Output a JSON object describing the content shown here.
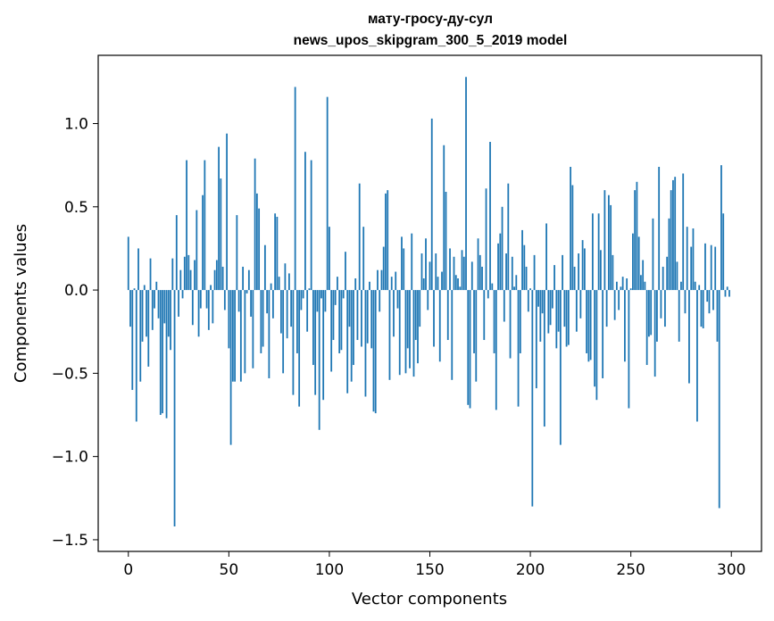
{
  "chart_data": {
    "type": "bar",
    "title": "мату-гросу-ду-сул",
    "subtitle": "news_upos_skipgram_300_5_2019 model",
    "xlabel": "Vector components",
    "ylabel": "Components values",
    "xlim": [
      -15,
      315
    ],
    "ylim": [
      -1.57,
      1.41
    ],
    "xticks": [
      0,
      50,
      100,
      150,
      200,
      250,
      300
    ],
    "yticks": [
      -1.5,
      -1.0,
      -0.5,
      0.0,
      0.5,
      1.0
    ],
    "ytick_labels": [
      "−1.5",
      "−1.0",
      "−0.5",
      "0.0",
      "0.5",
      "1.0"
    ],
    "grid": false,
    "bar_color": "#1f77b4",
    "values": [
      0.32,
      -0.22,
      -0.6,
      0.01,
      -0.79,
      0.25,
      -0.55,
      -0.31,
      0.03,
      -0.28,
      -0.46,
      0.19,
      -0.24,
      -0.11,
      0.05,
      -0.17,
      -0.75,
      -0.74,
      -0.2,
      -0.77,
      -0.28,
      -0.36,
      0.19,
      -1.42,
      0.45,
      -0.16,
      0.12,
      -0.05,
      0.2,
      0.78,
      0.21,
      0.12,
      -0.21,
      0.18,
      0.48,
      -0.28,
      -0.11,
      0.57,
      0.78,
      -0.11,
      -0.24,
      0.03,
      -0.2,
      0.12,
      0.18,
      0.86,
      0.67,
      0.14,
      -0.12,
      0.94,
      -0.35,
      -0.93,
      -0.55,
      -0.55,
      0.45,
      -0.13,
      -0.55,
      0.14,
      -0.5,
      -0.02,
      0.12,
      -0.16,
      -0.47,
      0.79,
      0.58,
      0.49,
      -0.38,
      -0.34,
      0.27,
      -0.14,
      -0.53,
      0.04,
      -0.17,
      0.46,
      0.44,
      0.08,
      -0.26,
      -0.5,
      0.16,
      -0.29,
      0.1,
      -0.22,
      -0.63,
      1.22,
      -0.38,
      -0.7,
      -0.12,
      -0.05,
      0.83,
      -0.25,
      0.01,
      0.78,
      -0.45,
      -0.63,
      -0.13,
      -0.84,
      -0.05,
      -0.66,
      -0.13,
      1.16,
      0.38,
      -0.49,
      -0.3,
      -0.09,
      0.08,
      -0.38,
      -0.36,
      -0.05,
      0.23,
      -0.62,
      -0.22,
      -0.55,
      -0.45,
      0.07,
      -0.3,
      0.64,
      -0.34,
      0.38,
      -0.64,
      -0.32,
      0.05,
      -0.35,
      -0.73,
      -0.74,
      0.12,
      -0.13,
      0.12,
      0.26,
      0.58,
      0.6,
      -0.54,
      0.08,
      -0.28,
      0.11,
      -0.11,
      -0.51,
      0.32,
      0.25,
      -0.5,
      -0.35,
      -0.47,
      0.34,
      -0.52,
      -0.3,
      -0.44,
      -0.22,
      0.22,
      0.07,
      0.31,
      -0.12,
      0.17,
      1.03,
      -0.34,
      0.22,
      0.08,
      -0.43,
      0.11,
      0.87,
      0.59,
      -0.3,
      0.25,
      -0.54,
      0.2,
      0.09,
      0.07,
      0.02,
      0.24,
      0.2,
      1.28,
      -0.69,
      -0.71,
      0.17,
      -0.38,
      -0.55,
      0.31,
      0.21,
      0.14,
      -0.3,
      0.61,
      -0.05,
      0.89,
      0.04,
      -0.38,
      -0.72,
      0.28,
      0.34,
      0.5,
      -0.19,
      0.22,
      0.64,
      -0.41,
      0.2,
      0.02,
      0.09,
      -0.7,
      -0.38,
      0.36,
      0.27,
      0.14,
      -0.13,
      0.01,
      -1.3,
      0.21,
      -0.59,
      -0.1,
      -0.31,
      -0.14,
      -0.82,
      0.4,
      -0.26,
      -0.21,
      -0.11,
      0.15,
      -0.35,
      -0.25,
      -0.93,
      0.21,
      -0.22,
      -0.34,
      -0.33,
      0.74,
      0.63,
      0.14,
      -0.25,
      0.22,
      -0.17,
      0.3,
      0.25,
      -0.38,
      -0.43,
      -0.42,
      0.46,
      -0.58,
      -0.66,
      0.46,
      0.24,
      -0.53,
      0.6,
      -0.22,
      0.57,
      0.51,
      0.21,
      -0.18,
      0.05,
      -0.12,
      0.02,
      0.08,
      -0.43,
      0.07,
      -0.71,
      0.01,
      0.34,
      0.6,
      0.65,
      0.32,
      0.09,
      0.18,
      0.05,
      -0.45,
      -0.28,
      -0.27,
      0.43,
      -0.52,
      -0.31,
      0.74,
      -0.17,
      0.14,
      -0.22,
      0.2,
      0.43,
      0.6,
      0.66,
      0.68,
      0.17,
      -0.31,
      0.05,
      0.7,
      -0.14,
      0.38,
      -0.56,
      0.26,
      0.37,
      0.05,
      -0.79,
      0.03,
      -0.22,
      -0.23,
      0.28,
      -0.07,
      -0.14,
      0.27,
      -0.12,
      0.26,
      -0.31,
      -1.31,
      0.75,
      0.46,
      -0.04,
      0.02,
      -0.04
    ]
  }
}
